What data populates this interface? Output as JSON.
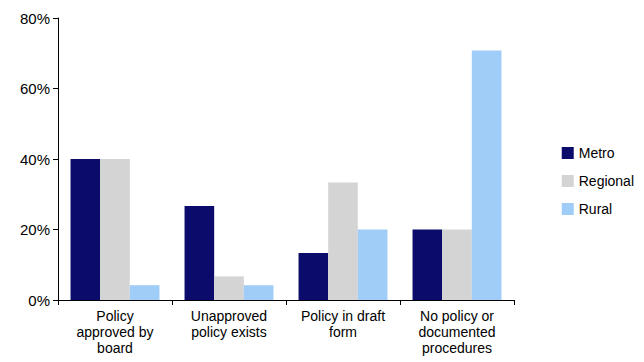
{
  "chart_data": {
    "type": "bar",
    "categories": [
      "Policy\napproved by\nboard",
      "Unapproved\npolicy exists",
      "Policy in draft\nform",
      "No policy or\ndocumented\nprocedures"
    ],
    "series": [
      {
        "name": "Metro",
        "color": "#0b0b6b",
        "values": [
          40,
          26.7,
          13.3,
          20
        ]
      },
      {
        "name": "Regional",
        "color": "#d4d4d4",
        "values": [
          40,
          6.7,
          33.3,
          20
        ]
      },
      {
        "name": "Rural",
        "color": "#9fcdf7",
        "values": [
          4.2,
          4.2,
          20,
          70.8
        ]
      }
    ],
    "ylim": [
      0,
      80
    ],
    "yticks": [
      {
        "value": 0,
        "label": "0%"
      },
      {
        "value": 20,
        "label": "20%"
      },
      {
        "value": 40,
        "label": "40%"
      },
      {
        "value": 60,
        "label": "60%"
      },
      {
        "value": 80,
        "label": "80%"
      }
    ],
    "grid": false,
    "legend": "right"
  }
}
